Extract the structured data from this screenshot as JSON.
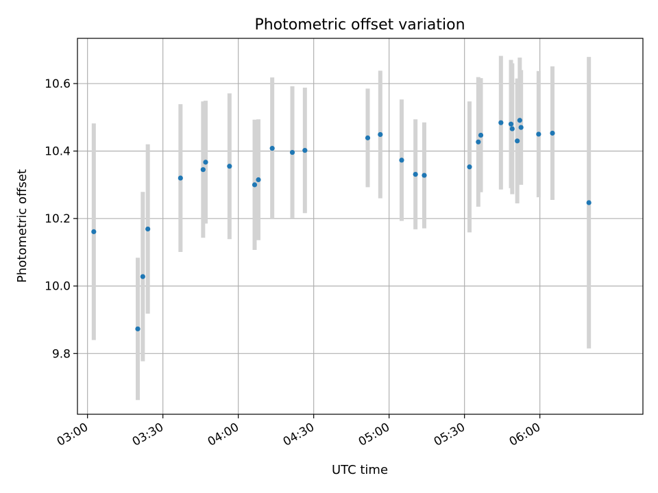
{
  "chart_data": {
    "type": "scatter",
    "title": "Photometric offset variation",
    "xlabel": "UTC time",
    "ylabel": "Photometric offset",
    "x_unit": "UTC time (HH:MM)",
    "xlim": [
      "02:56:00",
      "06:41:00"
    ],
    "ylim": [
      9.62,
      10.734
    ],
    "x_ticks": [
      "03:00",
      "03:30",
      "04:00",
      "04:30",
      "05:00",
      "05:30",
      "06:00"
    ],
    "y_ticks": [
      9.8,
      10.0,
      10.2,
      10.4,
      10.6
    ],
    "grid": true,
    "errorbar_color": "#d3d3d3",
    "point_color": "#1f77b4",
    "points": [
      {
        "time": "03:02:30",
        "y": 10.161,
        "yerr": 0.321
      },
      {
        "time": "03:20:00",
        "y": 9.873,
        "yerr": 0.211
      },
      {
        "time": "03:22:00",
        "y": 10.028,
        "yerr": 0.251
      },
      {
        "time": "03:24:00",
        "y": 10.169,
        "yerr": 0.251
      },
      {
        "time": "03:37:00",
        "y": 10.32,
        "yerr": 0.219
      },
      {
        "time": "03:46:00",
        "y": 10.345,
        "yerr": 0.202
      },
      {
        "time": "03:47:00",
        "y": 10.367,
        "yerr": 0.182
      },
      {
        "time": "03:56:30",
        "y": 10.355,
        "yerr": 0.216
      },
      {
        "time": "04:06:30",
        "y": 10.3,
        "yerr": 0.193
      },
      {
        "time": "04:08:00",
        "y": 10.315,
        "yerr": 0.179
      },
      {
        "time": "04:13:30",
        "y": 10.408,
        "yerr": 0.21
      },
      {
        "time": "04:21:30",
        "y": 10.396,
        "yerr": 0.196
      },
      {
        "time": "04:26:30",
        "y": 10.402,
        "yerr": 0.186
      },
      {
        "time": "04:51:30",
        "y": 10.439,
        "yerr": 0.146
      },
      {
        "time": "04:56:30",
        "y": 10.449,
        "yerr": 0.189
      },
      {
        "time": "05:05:00",
        "y": 10.373,
        "yerr": 0.18
      },
      {
        "time": "05:10:30",
        "y": 10.331,
        "yerr": 0.163
      },
      {
        "time": "05:14:00",
        "y": 10.328,
        "yerr": 0.157
      },
      {
        "time": "05:32:00",
        "y": 10.353,
        "yerr": 0.194
      },
      {
        "time": "05:35:30",
        "y": 10.427,
        "yerr": 0.192
      },
      {
        "time": "05:36:30",
        "y": 10.447,
        "yerr": 0.169
      },
      {
        "time": "05:44:30",
        "y": 10.484,
        "yerr": 0.198
      },
      {
        "time": "05:48:30",
        "y": 10.48,
        "yerr": 0.19
      },
      {
        "time": "05:49:00",
        "y": 10.466,
        "yerr": 0.194
      },
      {
        "time": "05:51:00",
        "y": 10.43,
        "yerr": 0.185
      },
      {
        "time": "05:52:00",
        "y": 10.491,
        "yerr": 0.186
      },
      {
        "time": "05:52:30",
        "y": 10.47,
        "yerr": 0.17
      },
      {
        "time": "05:59:30",
        "y": 10.45,
        "yerr": 0.187
      },
      {
        "time": "06:05:00",
        "y": 10.453,
        "yerr": 0.198
      },
      {
        "time": "06:19:30",
        "y": 10.247,
        "yerr": 0.432
      }
    ]
  }
}
